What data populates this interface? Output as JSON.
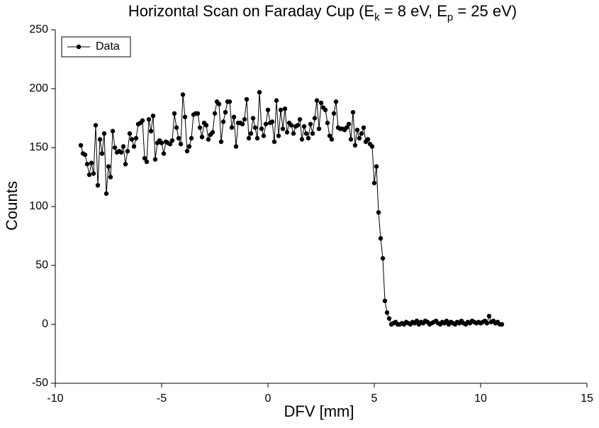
{
  "chart_data": {
    "type": "line",
    "title_parts": [
      {
        "text": "Horizontal Scan on Faraday Cup (E"
      },
      {
        "text": "k",
        "sub": true
      },
      {
        "text": " = 8 eV, E"
      },
      {
        "text": "p",
        "sub": true
      },
      {
        "text": " = 25 eV)"
      }
    ],
    "xlabel": "DFV [mm]",
    "ylabel": "Counts",
    "xlim": [
      -10,
      15
    ],
    "xticks": [
      -10,
      -5,
      0,
      5,
      10,
      15
    ],
    "ylim": [
      -50,
      250
    ],
    "yticks": [
      -50,
      0,
      50,
      100,
      150,
      200,
      250
    ],
    "legend": "upper left",
    "x": [
      -8.8,
      -8.7,
      -8.6,
      -8.5,
      -8.4,
      -8.3,
      -8.2,
      -8.1,
      -8.0,
      -7.9,
      -7.8,
      -7.7,
      -7.6,
      -7.5,
      -7.4,
      -7.3,
      -7.2,
      -7.1,
      -7.0,
      -6.9,
      -6.8,
      -6.7,
      -6.6,
      -6.5,
      -6.4,
      -6.3,
      -6.2,
      -6.1,
      -6.0,
      -5.9,
      -5.8,
      -5.7,
      -5.6,
      -5.5,
      -5.4,
      -5.3,
      -5.2,
      -5.1,
      -5.0,
      -4.9,
      -4.8,
      -4.7,
      -4.6,
      -4.5,
      -4.4,
      -4.3,
      -4.2,
      -4.1,
      -4.0,
      -3.9,
      -3.8,
      -3.7,
      -3.6,
      -3.5,
      -3.4,
      -3.3,
      -3.2,
      -3.1,
      -3.0,
      -2.9,
      -2.8,
      -2.7,
      -2.6,
      -2.5,
      -2.4,
      -2.3,
      -2.2,
      -2.1,
      -2.0,
      -1.9,
      -1.8,
      -1.7,
      -1.6,
      -1.5,
      -1.4,
      -1.3,
      -1.2,
      -1.1,
      -1.0,
      -0.9,
      -0.8,
      -0.7,
      -0.6,
      -0.5,
      -0.4,
      -0.3,
      -0.2,
      -0.1,
      0.0,
      0.1,
      0.2,
      0.3,
      0.4,
      0.5,
      0.6,
      0.7,
      0.8,
      0.9,
      1.0,
      1.1,
      1.2,
      1.3,
      1.4,
      1.5,
      1.6,
      1.7,
      1.8,
      1.9,
      2.0,
      2.1,
      2.2,
      2.3,
      2.4,
      2.5,
      2.6,
      2.7,
      2.8,
      2.9,
      3.0,
      3.1,
      3.2,
      3.3,
      3.4,
      3.5,
      3.6,
      3.7,
      3.8,
      3.9,
      4.0,
      4.1,
      4.2,
      4.3,
      4.4,
      4.5,
      4.6,
      4.7,
      4.8,
      4.9,
      5.0,
      5.1,
      5.2,
      5.3,
      5.4,
      5.5,
      5.6,
      5.7,
      5.8,
      5.9,
      6.0,
      6.1,
      6.2,
      6.3,
      6.4,
      6.5,
      6.6,
      6.7,
      6.8,
      6.9,
      7.0,
      7.1,
      7.2,
      7.3,
      7.4,
      7.5,
      7.6,
      7.7,
      7.8,
      7.9,
      8.0,
      8.1,
      8.2,
      8.3,
      8.4,
      8.5,
      8.6,
      8.7,
      8.8,
      8.9,
      9.0,
      9.1,
      9.2,
      9.3,
      9.4,
      9.5,
      9.6,
      9.7,
      9.8,
      9.9,
      10.0,
      10.1,
      10.2,
      10.3,
      10.4,
      10.5,
      10.6,
      10.7,
      10.8,
      10.9,
      11.0
    ],
    "series": [
      {
        "name": "Data",
        "color": "#000000",
        "values": [
          152,
          145,
          144,
          136,
          127,
          137,
          128,
          169,
          118,
          157,
          145,
          162,
          111,
          134,
          125,
          164,
          150,
          146,
          147,
          146,
          151,
          136,
          147,
          162,
          157,
          151,
          158,
          170,
          171,
          173,
          141,
          138,
          174,
          164,
          177,
          140,
          154,
          156,
          154,
          145,
          155,
          154,
          153,
          156,
          179,
          167,
          158,
          153,
          195,
          176,
          147,
          151,
          158,
          178,
          179,
          179,
          167,
          159,
          171,
          169,
          157,
          161,
          163,
          179,
          189,
          187,
          155,
          172,
          180,
          189,
          189,
          167,
          176,
          151,
          171,
          171,
          170,
          174,
          191,
          158,
          162,
          175,
          167,
          158,
          197,
          166,
          160,
          170,
          182,
          171,
          172,
          155,
          190,
          160,
          182,
          166,
          183,
          163,
          171,
          169,
          162,
          168,
          169,
          174,
          157,
          168,
          162,
          158,
          170,
          162,
          175,
          190,
          166,
          188,
          184,
          182,
          171,
          160,
          157,
          179,
          189,
          167,
          166,
          166,
          165,
          167,
          170,
          157,
          180,
          152,
          165,
          158,
          162,
          167,
          155,
          157,
          153,
          151,
          120,
          134,
          95,
          73,
          56,
          20,
          10,
          5,
          0,
          1,
          2,
          0,
          0,
          1,
          0,
          2,
          1,
          0,
          2,
          1,
          3,
          0,
          2,
          1,
          3,
          2,
          0,
          1,
          2,
          3,
          1,
          0,
          2,
          1,
          3,
          0,
          2,
          1,
          0,
          2,
          1,
          3,
          1,
          0,
          2,
          1,
          3,
          2,
          1,
          2,
          1,
          2,
          3,
          1,
          7,
          2,
          3,
          1,
          2,
          0,
          0
        ]
      }
    ]
  }
}
